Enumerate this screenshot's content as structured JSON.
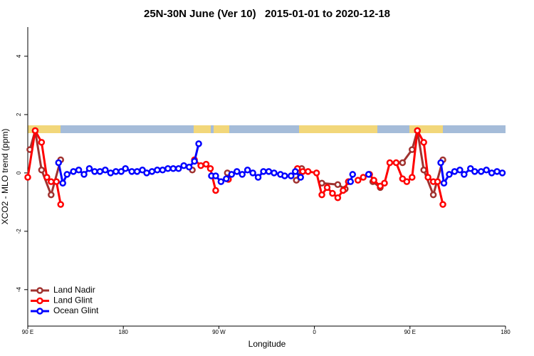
{
  "chart_data": {
    "type": "line",
    "title": "25N-30N June (Ver 10)   2015-01-01 to 2020-12-18",
    "x_label": "Longitude",
    "y_label": "XCO2 - MLO trend (ppm)",
    "xlim": [
      90,
      540
    ],
    "ylim": [
      -5.25,
      5
    ],
    "xticks": [
      {
        "value": 90,
        "label": "90 E"
      },
      180,
      {
        "value": 270,
        "label": "90 W"
      },
      {
        "value": 360,
        "label": "0"
      },
      {
        "value": 450,
        "label": "90 E"
      },
      {
        "value": 540,
        "label": "180"
      }
    ],
    "yticks": [
      -4,
      -2,
      0,
      2,
      4
    ],
    "legend": "bottom-left",
    "series": [
      {
        "name": "Land Nadir",
        "color": "#a0322f",
        "x": [
          92,
          97,
          103,
          112,
          121,
          180,
          245,
          260,
          278,
          310,
          343,
          348,
          358,
          367,
          382,
          389,
          400,
          415,
          422,
          435,
          443,
          452,
          457,
          463,
          472,
          481
        ],
        "values": [
          0.8,
          1.45,
          0.1,
          -0.75,
          0.45,
          null,
          0.1,
          null,
          0.0,
          null,
          -0.25,
          0.15,
          null,
          -0.35,
          -0.4,
          -0.55,
          null,
          -0.3,
          -0.5,
          null,
          0.35,
          0.8,
          1.45,
          0.1,
          -0.75,
          0.45
        ]
      },
      {
        "name": "Land Glint",
        "color": "#ff0000",
        "x": [
          90,
          97,
          103,
          108,
          112,
          117,
          121,
          200,
          247,
          253,
          258,
          262,
          267,
          273,
          279,
          310,
          344,
          349,
          354,
          362,
          367,
          372,
          377,
          382,
          387,
          392,
          397,
          401,
          406,
          412,
          416,
          422,
          426,
          431,
          437,
          443,
          447,
          452,
          457,
          463,
          467,
          472,
          476,
          481
        ],
        "values": [
          -0.15,
          1.45,
          1.05,
          -0.15,
          -0.3,
          -0.3,
          -1.08,
          null,
          0.45,
          0.25,
          0.3,
          0.15,
          -0.6,
          null,
          -0.22,
          null,
          0.15,
          0.05,
          0.05,
          0.0,
          -0.75,
          -0.5,
          -0.7,
          -0.85,
          -0.6,
          -0.3,
          null,
          -0.25,
          -0.15,
          -0.05,
          -0.25,
          -0.45,
          -0.35,
          0.35,
          0.35,
          -0.2,
          -0.3,
          -0.15,
          1.45,
          1.05,
          -0.15,
          -0.3,
          -0.3,
          -1.08
        ]
      },
      {
        "name": "Ocean Glint",
        "color": "#0000ff",
        "x": [
          119,
          123,
          127,
          133,
          138,
          143,
          148,
          153,
          158,
          163,
          168,
          173,
          178,
          182,
          188,
          193,
          198,
          202,
          207,
          212,
          217,
          222,
          227,
          232,
          237,
          242,
          247,
          251,
          257,
          263,
          267,
          272,
          277,
          282,
          287,
          292,
          297,
          302,
          307,
          312,
          317,
          322,
          328,
          332,
          338,
          342,
          347,
          370,
          394,
          396,
          404,
          411,
          445,
          479,
          482,
          487,
          492,
          497,
          501,
          507,
          511,
          517,
          522,
          527,
          532,
          537
        ],
        "values": [
          0.35,
          -0.35,
          -0.05,
          0.05,
          0.1,
          -0.05,
          0.15,
          0.05,
          0.05,
          0.1,
          0.0,
          0.05,
          0.05,
          0.15,
          0.05,
          0.05,
          0.1,
          0.0,
          0.05,
          0.1,
          0.1,
          0.15,
          0.15,
          0.15,
          0.25,
          0.2,
          0.4,
          1.0,
          null,
          -0.1,
          -0.1,
          -0.3,
          -0.2,
          -0.05,
          0.05,
          -0.05,
          0.1,
          0.0,
          -0.15,
          0.05,
          0.05,
          0.0,
          -0.05,
          -0.1,
          -0.1,
          0.05,
          -0.15,
          null,
          -0.3,
          -0.05,
          null,
          -0.05,
          null,
          0.35,
          -0.35,
          -0.05,
          0.05,
          0.1,
          -0.05,
          0.15,
          0.05,
          0.05,
          0.1,
          0.0,
          0.05,
          0.0
        ]
      }
    ]
  }
}
